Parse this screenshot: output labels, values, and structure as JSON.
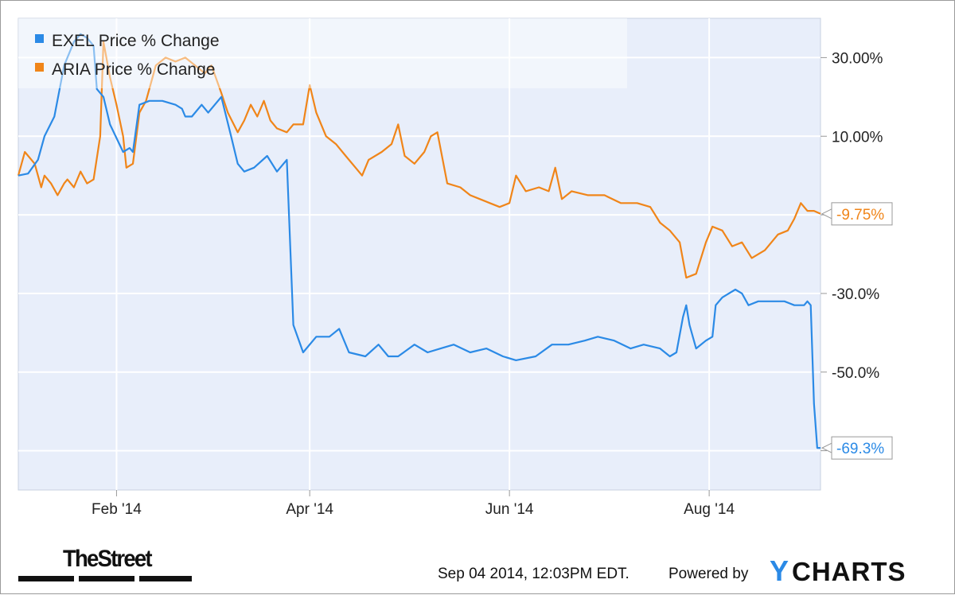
{
  "chart_data": {
    "type": "line",
    "y_unit": "% change",
    "x_range": [
      "2014-01-02",
      "2014-09-04"
    ],
    "ylim": [
      -80,
      40
    ],
    "x_ticks": [
      {
        "date": "2014-02-01",
        "label": "Feb '14"
      },
      {
        "date": "2014-04-01",
        "label": "Apr '14"
      },
      {
        "date": "2014-06-01",
        "label": "Jun '14"
      },
      {
        "date": "2014-08-01",
        "label": "Aug '14"
      }
    ],
    "y_ticks": [
      {
        "value": 30,
        "label": "30.00%"
      },
      {
        "value": 10,
        "label": "10.00%"
      },
      {
        "value": -10,
        "label": ""
      },
      {
        "value": -30,
        "label": "-30.0%"
      },
      {
        "value": -50,
        "label": "-50.0%"
      },
      {
        "value": -70,
        "label": ""
      }
    ],
    "grid": true,
    "legend_position": "top-left",
    "series": [
      {
        "name": "EXEL Price  % Change",
        "color": "#2b8ae6",
        "end_label": "-69.3%",
        "points": [
          [
            "2014-01-02",
            0
          ],
          [
            "2014-01-05",
            0.5
          ],
          [
            "2014-01-08",
            4
          ],
          [
            "2014-01-10",
            10
          ],
          [
            "2014-01-13",
            15
          ],
          [
            "2014-01-16",
            28
          ],
          [
            "2014-01-19",
            34
          ],
          [
            "2014-01-21",
            36
          ],
          [
            "2014-01-23",
            35
          ],
          [
            "2014-01-25",
            33
          ],
          [
            "2014-01-26",
            22
          ],
          [
            "2014-01-28",
            20
          ],
          [
            "2014-01-30",
            13
          ],
          [
            "2014-02-03",
            6
          ],
          [
            "2014-02-05",
            7
          ],
          [
            "2014-02-06",
            6
          ],
          [
            "2014-02-08",
            18
          ],
          [
            "2014-02-11",
            19
          ],
          [
            "2014-02-15",
            19
          ],
          [
            "2014-02-19",
            18
          ],
          [
            "2014-02-21",
            17
          ],
          [
            "2014-02-22",
            15
          ],
          [
            "2014-02-24",
            15
          ],
          [
            "2014-02-27",
            18
          ],
          [
            "2014-03-01",
            16
          ],
          [
            "2014-03-05",
            20
          ],
          [
            "2014-03-08",
            10
          ],
          [
            "2014-03-10",
            3
          ],
          [
            "2014-03-12",
            1
          ],
          [
            "2014-03-15",
            2
          ],
          [
            "2014-03-19",
            5
          ],
          [
            "2014-03-22",
            1
          ],
          [
            "2014-03-25",
            4
          ],
          [
            "2014-03-27",
            -38
          ],
          [
            "2014-03-30",
            -45
          ],
          [
            "2014-04-03",
            -41
          ],
          [
            "2014-04-07",
            -41
          ],
          [
            "2014-04-10",
            -39
          ],
          [
            "2014-04-13",
            -45
          ],
          [
            "2014-04-18",
            -46
          ],
          [
            "2014-04-22",
            -43
          ],
          [
            "2014-04-25",
            -46
          ],
          [
            "2014-04-28",
            -46
          ],
          [
            "2014-05-03",
            -43
          ],
          [
            "2014-05-07",
            -45
          ],
          [
            "2014-05-11",
            -44
          ],
          [
            "2014-05-15",
            -43
          ],
          [
            "2014-05-20",
            -45
          ],
          [
            "2014-05-25",
            -44
          ],
          [
            "2014-05-30",
            -46
          ],
          [
            "2014-06-03",
            -47
          ],
          [
            "2014-06-09",
            -46
          ],
          [
            "2014-06-14",
            -43
          ],
          [
            "2014-06-19",
            -43
          ],
          [
            "2014-06-24",
            -42
          ],
          [
            "2014-06-28",
            -41
          ],
          [
            "2014-07-03",
            -42
          ],
          [
            "2014-07-08",
            -44
          ],
          [
            "2014-07-12",
            -43
          ],
          [
            "2014-07-17",
            -44
          ],
          [
            "2014-07-20",
            -46
          ],
          [
            "2014-07-22",
            -45
          ],
          [
            "2014-07-24",
            -36
          ],
          [
            "2014-07-25",
            -33
          ],
          [
            "2014-07-26",
            -38
          ],
          [
            "2014-07-28",
            -44
          ],
          [
            "2014-07-31",
            -42
          ],
          [
            "2014-08-02",
            -41
          ],
          [
            "2014-08-03",
            -33
          ],
          [
            "2014-08-05",
            -31
          ],
          [
            "2014-08-07",
            -30
          ],
          [
            "2014-08-09",
            -29
          ],
          [
            "2014-08-11",
            -30
          ],
          [
            "2014-08-13",
            -33
          ],
          [
            "2014-08-16",
            -32
          ],
          [
            "2014-08-19",
            -32
          ],
          [
            "2014-08-22",
            -32
          ],
          [
            "2014-08-24",
            -32
          ],
          [
            "2014-08-27",
            -33
          ],
          [
            "2014-08-30",
            -33
          ],
          [
            "2014-08-31",
            -32
          ],
          [
            "2014-09-01",
            -33
          ],
          [
            "2014-09-02",
            -58
          ],
          [
            "2014-09-03",
            -69.3
          ],
          [
            "2014-09-04",
            -69.3
          ]
        ]
      },
      {
        "name": "ARIA Price  % Change",
        "color": "#f08519",
        "end_label": "-9.75%",
        "points": [
          [
            "2014-01-02",
            0
          ],
          [
            "2014-01-04",
            6
          ],
          [
            "2014-01-07",
            3
          ],
          [
            "2014-01-09",
            -3
          ],
          [
            "2014-01-10",
            0
          ],
          [
            "2014-01-12",
            -2
          ],
          [
            "2014-01-14",
            -5
          ],
          [
            "2014-01-16",
            -2
          ],
          [
            "2014-01-17",
            -1
          ],
          [
            "2014-01-19",
            -3
          ],
          [
            "2014-01-21",
            1
          ],
          [
            "2014-01-23",
            -2
          ],
          [
            "2014-01-25",
            -1
          ],
          [
            "2014-01-27",
            10
          ],
          [
            "2014-01-28",
            34
          ],
          [
            "2014-01-30",
            25
          ],
          [
            "2014-02-01",
            18
          ],
          [
            "2014-02-03",
            10
          ],
          [
            "2014-02-04",
            2
          ],
          [
            "2014-02-06",
            3
          ],
          [
            "2014-02-08",
            16
          ],
          [
            "2014-02-10",
            19
          ],
          [
            "2014-02-13",
            28
          ],
          [
            "2014-02-16",
            30
          ],
          [
            "2014-02-19",
            29
          ],
          [
            "2014-02-22",
            30
          ],
          [
            "2014-02-25",
            28
          ],
          [
            "2014-02-28",
            26
          ],
          [
            "2014-03-02",
            28
          ],
          [
            "2014-03-05",
            21
          ],
          [
            "2014-03-07",
            16
          ],
          [
            "2014-03-10",
            11
          ],
          [
            "2014-03-12",
            14
          ],
          [
            "2014-03-14",
            18
          ],
          [
            "2014-03-16",
            15
          ],
          [
            "2014-03-18",
            19
          ],
          [
            "2014-03-20",
            14
          ],
          [
            "2014-03-22",
            12
          ],
          [
            "2014-03-25",
            11
          ],
          [
            "2014-03-27",
            13
          ],
          [
            "2014-03-30",
            13
          ],
          [
            "2014-04-01",
            23
          ],
          [
            "2014-04-03",
            16
          ],
          [
            "2014-04-06",
            10
          ],
          [
            "2014-04-09",
            8
          ],
          [
            "2014-04-12",
            5
          ],
          [
            "2014-04-15",
            2
          ],
          [
            "2014-04-17",
            0
          ],
          [
            "2014-04-19",
            4
          ],
          [
            "2014-04-23",
            6
          ],
          [
            "2014-04-26",
            8
          ],
          [
            "2014-04-28",
            13
          ],
          [
            "2014-04-30",
            5
          ],
          [
            "2014-05-03",
            3
          ],
          [
            "2014-05-06",
            6
          ],
          [
            "2014-05-08",
            10
          ],
          [
            "2014-05-10",
            11
          ],
          [
            "2014-05-13",
            -2
          ],
          [
            "2014-05-17",
            -3
          ],
          [
            "2014-05-20",
            -5
          ],
          [
            "2014-05-23",
            -6
          ],
          [
            "2014-05-26",
            -7
          ],
          [
            "2014-05-29",
            -8
          ],
          [
            "2014-06-01",
            -7
          ],
          [
            "2014-06-03",
            0
          ],
          [
            "2014-06-06",
            -4
          ],
          [
            "2014-06-10",
            -3
          ],
          [
            "2014-06-13",
            -4
          ],
          [
            "2014-06-15",
            2
          ],
          [
            "2014-06-17",
            -6
          ],
          [
            "2014-06-20",
            -4
          ],
          [
            "2014-06-25",
            -5
          ],
          [
            "2014-06-30",
            -5
          ],
          [
            "2014-07-05",
            -7
          ],
          [
            "2014-07-10",
            -7
          ],
          [
            "2014-07-14",
            -8
          ],
          [
            "2014-07-17",
            -12
          ],
          [
            "2014-07-20",
            -14
          ],
          [
            "2014-07-23",
            -17
          ],
          [
            "2014-07-25",
            -26
          ],
          [
            "2014-07-28",
            -25
          ],
          [
            "2014-07-31",
            -17
          ],
          [
            "2014-08-02",
            -13
          ],
          [
            "2014-08-05",
            -14
          ],
          [
            "2014-08-08",
            -18
          ],
          [
            "2014-08-11",
            -17
          ],
          [
            "2014-08-14",
            -21
          ],
          [
            "2014-08-18",
            -19
          ],
          [
            "2014-08-22",
            -15
          ],
          [
            "2014-08-25",
            -14
          ],
          [
            "2014-08-27",
            -11
          ],
          [
            "2014-08-29",
            -7
          ],
          [
            "2014-08-31",
            -9
          ],
          [
            "2014-09-02",
            -9
          ],
          [
            "2014-09-04",
            -9.75
          ]
        ]
      }
    ]
  },
  "footer": {
    "timestamp": "Sep 04 2014, 12:03PM EDT.",
    "powered_by": "Powered by",
    "ycharts_y": "Y",
    "ycharts_rest": "CHARTS",
    "thestreet": "TheStreet"
  },
  "colors": {
    "plot_bg": "#e8eefa",
    "grid": "#ffffff",
    "brand": "#111111"
  }
}
